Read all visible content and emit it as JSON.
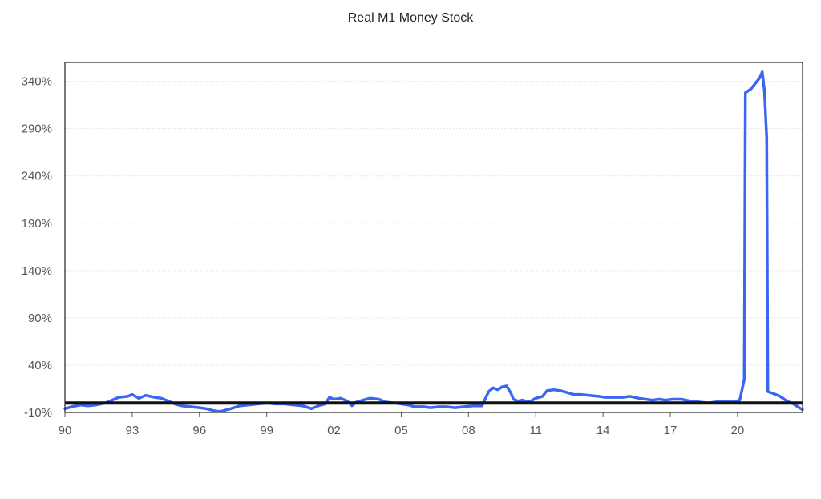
{
  "chart_data": {
    "type": "line",
    "title": "Real M1 Money Stock",
    "xlabel": "",
    "ylabel": "",
    "ylim": [
      -10,
      360
    ],
    "xlim": [
      1990,
      2022.9
    ],
    "y_ticks": [
      -10,
      40,
      90,
      140,
      190,
      240,
      290,
      340
    ],
    "y_tick_labels": [
      "-10%",
      "40%",
      "90%",
      "140%",
      "190%",
      "240%",
      "290%",
      "340%"
    ],
    "x_ticks": [
      1990,
      1993,
      1996,
      1999,
      2002,
      2005,
      2008,
      2011,
      2014,
      2017,
      2020
    ],
    "x_tick_labels": [
      "90",
      "93",
      "96",
      "99",
      "02",
      "05",
      "08",
      "11",
      "14",
      "17",
      "20"
    ],
    "grid": "horizontal",
    "reference_line": {
      "y": 0,
      "color": "#111111"
    },
    "series": [
      {
        "color": "#3a66f0",
        "points": [
          [
            1990.0,
            -6
          ],
          [
            1990.3,
            -4
          ],
          [
            1990.7,
            -2
          ],
          [
            1991.0,
            -3
          ],
          [
            1991.4,
            -2
          ],
          [
            1991.8,
            0
          ],
          [
            1992.1,
            3
          ],
          [
            1992.4,
            6
          ],
          [
            1992.8,
            7
          ],
          [
            1993.0,
            9
          ],
          [
            1993.3,
            5
          ],
          [
            1993.6,
            8
          ],
          [
            1994.0,
            6
          ],
          [
            1994.3,
            5
          ],
          [
            1994.6,
            2
          ],
          [
            1994.9,
            -1
          ],
          [
            1995.2,
            -3
          ],
          [
            1995.6,
            -4
          ],
          [
            1996.0,
            -5
          ],
          [
            1996.3,
            -6
          ],
          [
            1996.6,
            -8
          ],
          [
            1996.9,
            -9
          ],
          [
            1997.1,
            -8
          ],
          [
            1997.4,
            -6
          ],
          [
            1997.8,
            -3
          ],
          [
            1998.2,
            -2
          ],
          [
            1998.6,
            -1
          ],
          [
            1999.0,
            0
          ],
          [
            1999.4,
            -1
          ],
          [
            1999.8,
            -1
          ],
          [
            2000.2,
            -2
          ],
          [
            2000.6,
            -3
          ],
          [
            2001.0,
            -6
          ],
          [
            2001.3,
            -3
          ],
          [
            2001.6,
            -1
          ],
          [
            2001.8,
            6
          ],
          [
            2002.0,
            4
          ],
          [
            2002.3,
            5
          ],
          [
            2002.6,
            2
          ],
          [
            2002.8,
            -3
          ],
          [
            2003.0,
            1
          ],
          [
            2003.3,
            3
          ],
          [
            2003.6,
            5
          ],
          [
            2004.0,
            4
          ],
          [
            2004.3,
            1
          ],
          [
            2004.7,
            0
          ],
          [
            2005.0,
            -1
          ],
          [
            2005.3,
            -2
          ],
          [
            2005.6,
            -4
          ],
          [
            2006.0,
            -4
          ],
          [
            2006.3,
            -5
          ],
          [
            2006.7,
            -4
          ],
          [
            2007.0,
            -4
          ],
          [
            2007.4,
            -5
          ],
          [
            2007.8,
            -4
          ],
          [
            2008.2,
            -3
          ],
          [
            2008.6,
            -3
          ],
          [
            2008.9,
            12
          ],
          [
            2009.1,
            16
          ],
          [
            2009.3,
            14
          ],
          [
            2009.5,
            17
          ],
          [
            2009.7,
            18
          ],
          [
            2009.9,
            10
          ],
          [
            2010.0,
            4
          ],
          [
            2010.2,
            2
          ],
          [
            2010.4,
            3
          ],
          [
            2010.7,
            1
          ],
          [
            2011.0,
            5
          ],
          [
            2011.3,
            7
          ],
          [
            2011.5,
            13
          ],
          [
            2011.8,
            14
          ],
          [
            2012.1,
            13
          ],
          [
            2012.4,
            11
          ],
          [
            2012.7,
            9
          ],
          [
            2013.0,
            9
          ],
          [
            2013.4,
            8
          ],
          [
            2013.8,
            7
          ],
          [
            2014.1,
            6
          ],
          [
            2014.5,
            6
          ],
          [
            2014.9,
            6
          ],
          [
            2015.2,
            7
          ],
          [
            2015.6,
            5
          ],
          [
            2015.9,
            4
          ],
          [
            2016.2,
            3
          ],
          [
            2016.5,
            4
          ],
          [
            2016.8,
            3
          ],
          [
            2017.1,
            4
          ],
          [
            2017.5,
            4
          ],
          [
            2017.9,
            2
          ],
          [
            2018.3,
            1
          ],
          [
            2018.7,
            0
          ],
          [
            2019.0,
            1
          ],
          [
            2019.4,
            2
          ],
          [
            2019.8,
            1
          ],
          [
            2020.1,
            3
          ],
          [
            2020.3,
            25
          ],
          [
            2020.35,
            328
          ],
          [
            2020.6,
            332
          ],
          [
            2020.8,
            338
          ],
          [
            2021.0,
            344
          ],
          [
            2021.1,
            350
          ],
          [
            2021.2,
            330
          ],
          [
            2021.3,
            280
          ],
          [
            2021.35,
            12
          ],
          [
            2021.6,
            10
          ],
          [
            2021.9,
            7
          ],
          [
            2022.2,
            2
          ],
          [
            2022.5,
            -1
          ],
          [
            2022.75,
            -5
          ],
          [
            2022.9,
            -7
          ]
        ]
      }
    ]
  }
}
